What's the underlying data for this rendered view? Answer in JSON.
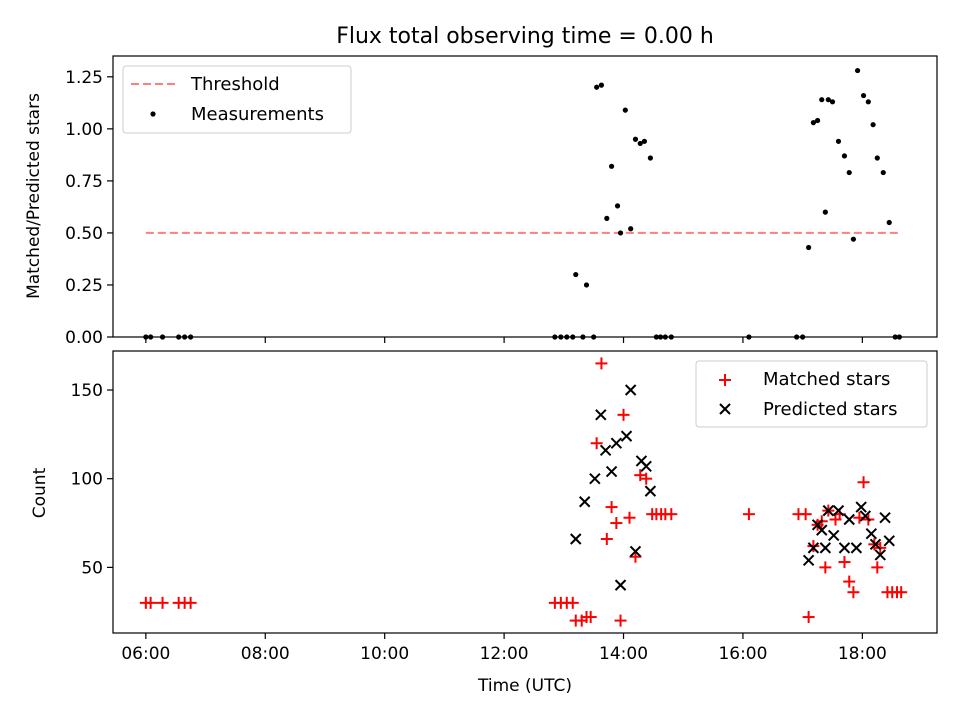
{
  "title": "Flux total observing time = 0.00 h",
  "chart_data": [
    {
      "type": "scatter",
      "ylabel": "Matched/Predicted stars",
      "xlabel": "",
      "xlim": [
        5.45,
        19.25
      ],
      "ylim": [
        0,
        1.35
      ],
      "yticks": [
        0,
        0.25,
        0.5,
        0.75,
        1.0,
        1.25
      ],
      "ytick_labels": [
        "0.00",
        "0.25",
        "0.50",
        "0.75",
        "1.00",
        "1.25"
      ],
      "xticks": [
        6,
        8,
        10,
        12,
        14,
        16,
        18
      ],
      "xtick_labels": [
        "06:00",
        "08:00",
        "10:00",
        "12:00",
        "14:00",
        "16:00",
        "18:00"
      ],
      "grid": false,
      "legend": "upper left",
      "threshold": {
        "name": "Threshold",
        "value": 0.5,
        "x": [
          6.0,
          18.6
        ],
        "color": "#ff7f7f"
      },
      "series": [
        {
          "name": "Measurements",
          "color": "#000000",
          "marker": "dot",
          "x": [
            6.0,
            6.08,
            6.28,
            6.55,
            6.65,
            6.75,
            12.85,
            12.95,
            13.05,
            13.15,
            13.2,
            13.32,
            13.38,
            13.5,
            13.55,
            13.63,
            13.72,
            13.8,
            13.9,
            13.95,
            14.03,
            14.12,
            14.2,
            14.28,
            14.35,
            14.45,
            14.55,
            14.62,
            14.7,
            14.8,
            16.1,
            16.9,
            17.0,
            17.1,
            17.18,
            17.25,
            17.32,
            17.38,
            17.43,
            17.5,
            17.6,
            17.7,
            17.78,
            17.85,
            17.92,
            18.02,
            18.1,
            18.18,
            18.25,
            18.35,
            18.45,
            18.55,
            18.62
          ],
          "y": [
            0,
            0,
            0,
            0,
            0,
            0,
            0,
            0,
            0,
            0,
            0.3,
            0,
            0.25,
            0,
            1.2,
            1.21,
            0.57,
            0.82,
            0.63,
            0.5,
            1.09,
            0.52,
            0.95,
            0.93,
            0.94,
            0.86,
            0,
            0,
            0,
            0,
            0,
            0,
            0,
            0.43,
            1.03,
            1.04,
            1.14,
            0.6,
            1.14,
            1.13,
            0.94,
            0.87,
            0.79,
            0.47,
            1.28,
            1.16,
            1.13,
            1.02,
            0.86,
            0.79,
            0.55,
            0,
            0
          ]
        }
      ]
    },
    {
      "type": "scatter",
      "ylabel": "Count",
      "xlabel": "Time (UTC)",
      "xlim": [
        5.45,
        19.25
      ],
      "ylim": [
        13,
        172
      ],
      "yticks": [
        50,
        100,
        150
      ],
      "ytick_labels": [
        "50",
        "100",
        "150"
      ],
      "xticks": [
        6,
        8,
        10,
        12,
        14,
        16,
        18
      ],
      "xtick_labels": [
        "06:00",
        "08:00",
        "10:00",
        "12:00",
        "14:00",
        "16:00",
        "18:00"
      ],
      "grid": false,
      "legend": "upper right",
      "series": [
        {
          "name": "Matched stars",
          "color": "#ff0000",
          "marker": "plus",
          "x": [
            6.0,
            6.08,
            6.28,
            6.55,
            6.65,
            6.75,
            12.85,
            12.95,
            13.05,
            13.15,
            13.2,
            13.3,
            13.38,
            13.45,
            13.55,
            13.63,
            13.72,
            13.8,
            13.88,
            13.95,
            14.0,
            14.1,
            14.2,
            14.28,
            14.38,
            14.48,
            14.55,
            14.63,
            14.7,
            14.8,
            16.1,
            16.93,
            17.05,
            17.1,
            17.18,
            17.25,
            17.32,
            17.38,
            17.43,
            17.55,
            17.62,
            17.7,
            17.78,
            17.85,
            17.95,
            18.02,
            18.1,
            18.2,
            18.25,
            18.3,
            18.42,
            18.5,
            18.58,
            18.65
          ],
          "y": [
            30,
            30,
            30,
            30,
            30,
            30,
            30,
            30,
            30,
            30,
            20,
            20,
            22,
            22,
            120,
            165,
            66,
            84,
            75,
            20,
            136,
            78,
            56,
            102,
            100,
            80,
            80,
            80,
            80,
            80,
            80,
            80,
            80,
            22,
            62,
            74,
            76,
            50,
            82,
            77,
            80,
            53,
            42,
            36,
            78,
            98,
            77,
            63,
            50,
            61,
            36,
            36,
            36,
            36
          ]
        },
        {
          "name": "Predicted stars",
          "color": "#000000",
          "marker": "x",
          "x": [
            13.2,
            13.35,
            13.52,
            13.62,
            13.7,
            13.8,
            13.88,
            13.95,
            14.05,
            14.12,
            14.2,
            14.3,
            14.38,
            14.45,
            17.1,
            17.18,
            17.25,
            17.32,
            17.38,
            17.43,
            17.52,
            17.6,
            17.7,
            17.78,
            17.9,
            17.98,
            18.05,
            18.15,
            18.22,
            18.3,
            18.38,
            18.45
          ],
          "y": [
            66,
            87,
            100,
            136,
            116,
            104,
            120,
            40,
            124,
            150,
            59,
            110,
            107,
            93,
            54,
            61,
            74,
            71,
            61,
            82,
            68,
            82,
            61,
            77,
            61,
            84,
            79,
            69,
            63,
            57,
            78,
            65
          ]
        }
      ]
    }
  ]
}
